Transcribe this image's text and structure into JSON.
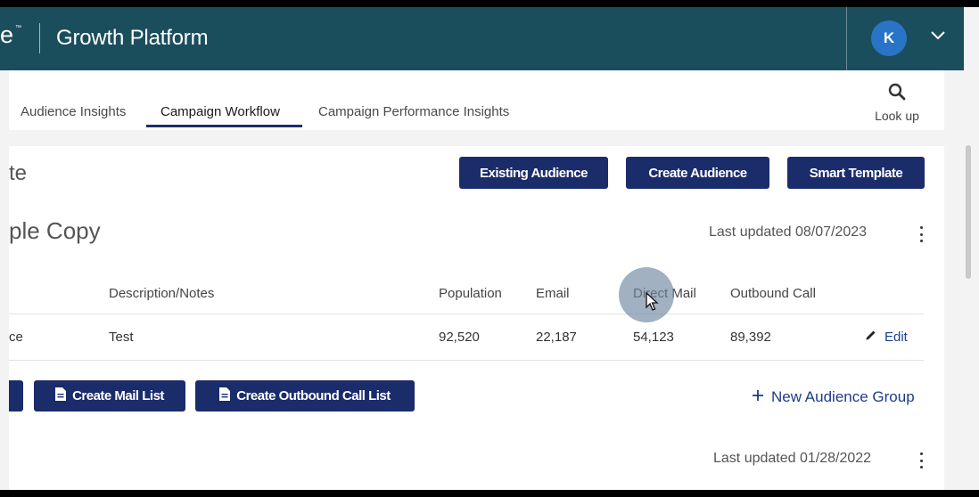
{
  "header": {
    "logo_fragment": "e",
    "logo_tm": "™",
    "app_title": "Growth Platform",
    "avatar_initial": "K",
    "colors": {
      "header_bg": "#1b4e5c",
      "avatar_bg": "#2a74c7",
      "primary_button": "#1b2c6b"
    }
  },
  "nav": {
    "tabs": [
      {
        "label": "Audience Insights",
        "active": false
      },
      {
        "label": "Campaign Workflow",
        "active": true
      },
      {
        "label": "Campaign Performance Insights",
        "active": false
      }
    ],
    "lookup_label": "Look up"
  },
  "page": {
    "title_fragment": "te",
    "actions": {
      "existing_audience": "Existing Audience",
      "create_audience": "Create Audience",
      "smart_template": "Smart Template"
    }
  },
  "group1": {
    "title_fragment": "ple Copy",
    "last_updated": "Last updated 08/07/2023",
    "table": {
      "headers": [
        "Description/Notes",
        "Population",
        "Email",
        "Direct Mail",
        "Outbound Call"
      ],
      "rows": [
        {
          "name_fragment": "ce",
          "description": "Test",
          "population": "92,520",
          "email": "22,187",
          "direct_mail": "54,123",
          "outbound_call": "89,392",
          "edit_label": "Edit"
        }
      ]
    },
    "buttons": {
      "create_mail_list": "Create Mail List",
      "create_outbound_call_list": "Create Outbound Call List"
    },
    "new_audience_group": "New Audience Group"
  },
  "group2": {
    "last_updated": "Last updated 01/28/2022"
  }
}
